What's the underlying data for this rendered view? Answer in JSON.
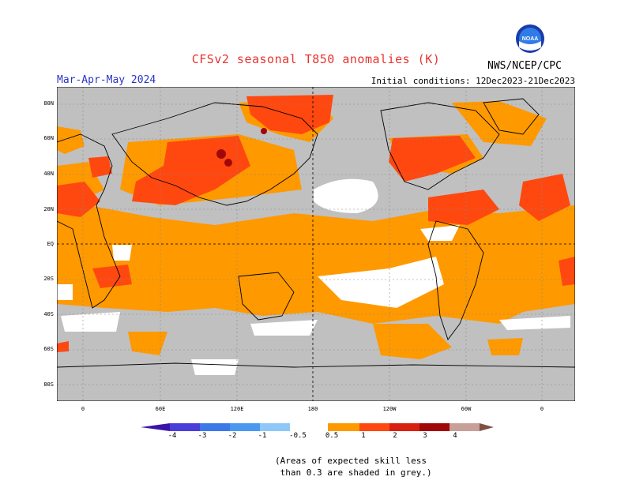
{
  "title": "CFSv2 seasonal T850 anomalies (K)",
  "season": "Mar-Apr-May 2024",
  "initial_conditions": "Initial conditions: 12Dec2023-21Dec2023",
  "agency": "NWS/NCEP/CPC",
  "logo_text": "NOAA",
  "lat_labels": [
    "80N",
    "60N",
    "40N",
    "20N",
    "EQ",
    "20S",
    "40S",
    "60S",
    "80S"
  ],
  "lon_labels": [
    "0",
    "60E",
    "120E",
    "180",
    "120W",
    "60W",
    "0"
  ],
  "colorbar": {
    "labels": [
      "-4",
      "-3",
      "-2",
      "-1",
      "-0.5",
      "0.5",
      "1",
      "2",
      "3",
      "4"
    ],
    "colors": [
      "#3a14a8",
      "#4a3ed8",
      "#3c78e8",
      "#5ca0f0",
      "#8ec8f8",
      "#ffffff",
      "#ff9900",
      "#ff4810",
      "#d82010",
      "#a00808",
      "#c8a098",
      "#805040"
    ]
  },
  "map_colors": {
    "grey": "#c0c0c0",
    "light_orange": "#ff9900",
    "orange_red": "#ff4810",
    "dark_red": "#a00808",
    "white": "#ffffff"
  },
  "note_line1": "(Areas of expected skill less",
  "note_line2": " than 0.3 are shaded in grey.)"
}
